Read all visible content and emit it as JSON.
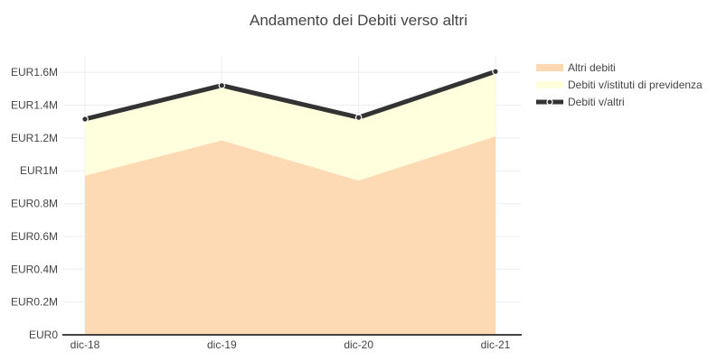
{
  "chart_data": {
    "type": "area",
    "title": "Andamento dei Debiti verso altri",
    "xlabel": "",
    "ylabel": "",
    "categories": [
      "dic-18",
      "dic-19",
      "dic-20",
      "dic-21"
    ],
    "ylim": [
      0,
      1700000
    ],
    "yticks": [
      0,
      200000,
      400000,
      600000,
      800000,
      1000000,
      1200000,
      1400000,
      1600000
    ],
    "ytick_labels": [
      "EUR0",
      "EUR0.2M",
      "EUR0.4M",
      "EUR0.6M",
      "EUR0.8M",
      "EUR1M",
      "EUR1.2M",
      "EUR1.4M",
      "EUR1.6M"
    ],
    "grid": true,
    "legend_position": "top-right",
    "series": [
      {
        "name": "Altri debiti",
        "kind": "area",
        "color": "#fdd8b0",
        "values": [
          970000,
          1185000,
          940000,
          1210000
        ]
      },
      {
        "name": "Debiti v/istituti di previdenza",
        "kind": "stacked-area",
        "color": "#ffffdc",
        "values": [
          345000,
          335000,
          385000,
          395000
        ]
      },
      {
        "name": "Debiti v/altri",
        "kind": "line",
        "color": "#333333",
        "values": [
          1315000,
          1520000,
          1325000,
          1605000
        ]
      }
    ]
  }
}
